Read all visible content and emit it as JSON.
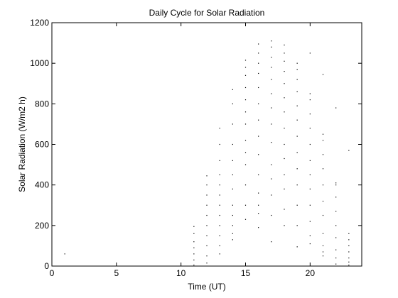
{
  "chart_data": {
    "type": "scatter",
    "title": "Daily Cycle for Solar Radiation",
    "xlabel": "Time (UT)",
    "ylabel": "Solar Radiation (W/m2 h)",
    "xlim": [
      0,
      24
    ],
    "ylim": [
      0,
      1200
    ],
    "xticks": [
      0,
      5,
      10,
      15,
      20
    ],
    "yticks": [
      0,
      200,
      400,
      600,
      800,
      1000,
      1200
    ],
    "grid": false,
    "legend": "none",
    "marker_color": "#000000",
    "series": [
      {
        "x": [
          1,
          11,
          11,
          11,
          11,
          11,
          11,
          11,
          12,
          12,
          12,
          12,
          12,
          12,
          12,
          12,
          12,
          12,
          13,
          13,
          13,
          13,
          13,
          13,
          13,
          13,
          13,
          13,
          13,
          13,
          14,
          14,
          14,
          14,
          14,
          14,
          14,
          14,
          14,
          14,
          14,
          14,
          15,
          15,
          15,
          15,
          15,
          15,
          15,
          15,
          15,
          15,
          15,
          15,
          15,
          16,
          16,
          16,
          16,
          16,
          16,
          16,
          16,
          16,
          16,
          16,
          16,
          16,
          16,
          17,
          17,
          17,
          17,
          17,
          17,
          17,
          17,
          17,
          17,
          17,
          17,
          17,
          17,
          18,
          18,
          18,
          18,
          18,
          18,
          18,
          18,
          18,
          18,
          18,
          18,
          18,
          18,
          19,
          19,
          19,
          19,
          19,
          19,
          19,
          19,
          19,
          19,
          19,
          19,
          19,
          20,
          20,
          20,
          20,
          20,
          20,
          20,
          20,
          20,
          20,
          20,
          20,
          20,
          21,
          21,
          21,
          21,
          21,
          21,
          21,
          21,
          21,
          21,
          21,
          21,
          22,
          22,
          22,
          22,
          22,
          22,
          22,
          22,
          22,
          22,
          23,
          23,
          23,
          23,
          23,
          23,
          23,
          23
        ],
        "y": [
          60,
          5,
          30,
          60,
          90,
          120,
          160,
          195,
          15,
          50,
          100,
          150,
          200,
          250,
          300,
          350,
          400,
          445,
          60,
          100,
          150,
          200,
          250,
          300,
          350,
          400,
          450,
          520,
          600,
          680,
          130,
          160,
          200,
          250,
          300,
          380,
          450,
          520,
          600,
          700,
          800,
          870,
          230,
          300,
          400,
          500,
          560,
          620,
          700,
          760,
          820,
          880,
          940,
          980,
          1015,
          190,
          260,
          300,
          360,
          450,
          550,
          640,
          720,
          800,
          880,
          950,
          1000,
          1050,
          1095,
          120,
          250,
          350,
          430,
          500,
          610,
          700,
          780,
          850,
          920,
          980,
          1030,
          1080,
          1110,
          200,
          280,
          380,
          450,
          530,
          600,
          680,
          760,
          830,
          900,
          960,
          1010,
          1050,
          1090,
          95,
          200,
          300,
          400,
          480,
          560,
          640,
          720,
          790,
          860,
          920,
          970,
          1000,
          110,
          150,
          220,
          300,
          380,
          450,
          520,
          600,
          680,
          750,
          820,
          850,
          1050,
          50,
          70,
          100,
          160,
          250,
          320,
          400,
          480,
          550,
          620,
          650,
          945,
          10,
          40,
          80,
          140,
          200,
          270,
          340,
          400,
          410,
          780,
          5,
          20,
          40,
          70,
          100,
          130,
          160,
          570
        ]
      }
    ]
  }
}
